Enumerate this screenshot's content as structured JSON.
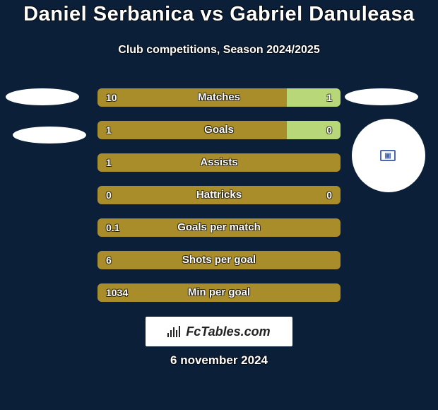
{
  "background_color": "#0b1f39",
  "title": {
    "text": "Daniel Serbanica vs Gabriel Danuleasa",
    "color": "#ffffff",
    "fontsize": 29
  },
  "subtitle": {
    "text": "Club competitions, Season 2024/2025",
    "color": "#ffffff",
    "fontsize": 16
  },
  "avatar_right_chip": {
    "border_color": "#4b68b0",
    "inner_color": "#4b68b0",
    "glyph": "▣"
  },
  "bar_style": {
    "left_color": "#a98d2a",
    "right_color": "#b7d778",
    "text_color": "#ffffff",
    "value_fontsize": 14,
    "label_fontsize": 15
  },
  "stats": [
    {
      "label": "Matches",
      "left_value": "10",
      "right_value": "1",
      "left_pct": 78,
      "right_pct": 22
    },
    {
      "label": "Goals",
      "left_value": "1",
      "right_value": "0",
      "left_pct": 78,
      "right_pct": 22
    },
    {
      "label": "Assists",
      "left_value": "1",
      "right_value": "",
      "left_pct": 100,
      "right_pct": 0
    },
    {
      "label": "Hattricks",
      "left_value": "0",
      "right_value": "0",
      "left_pct": 100,
      "right_pct": 0
    },
    {
      "label": "Goals per match",
      "left_value": "0.1",
      "right_value": "",
      "left_pct": 100,
      "right_pct": 0
    },
    {
      "label": "Shots per goal",
      "left_value": "6",
      "right_value": "",
      "left_pct": 100,
      "right_pct": 0
    },
    {
      "label": "Min per goal",
      "left_value": "1034",
      "right_value": "",
      "left_pct": 100,
      "right_pct": 0
    }
  ],
  "footer": {
    "brand_text": "FcTables.com",
    "date_text": "6 november 2024",
    "date_color": "#ffffff",
    "date_fontsize": 17
  }
}
